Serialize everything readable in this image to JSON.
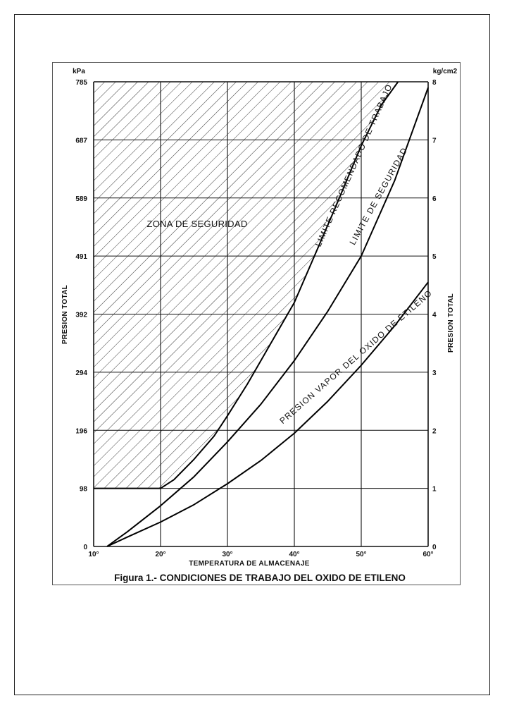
{
  "chart_data": {
    "type": "line",
    "caption": "Figura 1.- CONDICIONES DE TRABAJO DEL OXIDO DE ETILENO",
    "xlabel": "TEMPERATURA DE ALMACENAJE",
    "ylabel_left": "PRESION TOTAL",
    "ylabel_right": "PRESION TOTAL",
    "left_unit": "kPa",
    "right_unit": "kg/cm2",
    "x_ticks": [
      "10°",
      "20°",
      "30°",
      "40°",
      "50°",
      "60°"
    ],
    "y_left_ticks": [
      "0",
      "98",
      "196",
      "294",
      "392",
      "491",
      "589",
      "687",
      "785"
    ],
    "y_right_ticks": [
      "0",
      "1",
      "2",
      "3",
      "4",
      "5",
      "6",
      "7",
      "8"
    ],
    "xlim": [
      10,
      60
    ],
    "ylim": [
      0,
      8
    ],
    "grid": true,
    "shaded_region_label": "ZONA DE SEGURIDAD",
    "series": [
      {
        "name": "LIMITE RECOMENDADO DE TRABAJO",
        "x": [
          10,
          20,
          22,
          25,
          28,
          30,
          33,
          36,
          40,
          43,
          46,
          50,
          53,
          55.5
        ],
        "y": [
          1,
          1,
          1.15,
          1.5,
          1.9,
          2.25,
          2.8,
          3.4,
          4.2,
          5.0,
          5.8,
          6.9,
          7.6,
          8.0
        ]
      },
      {
        "name": "LIMITE DE SEGURIDAD",
        "x": [
          12,
          15,
          20,
          25,
          30,
          35,
          40,
          45,
          50,
          55,
          60
        ],
        "y": [
          0,
          0.25,
          0.7,
          1.2,
          1.8,
          2.45,
          3.2,
          4.05,
          5.0,
          6.3,
          7.9
        ]
      },
      {
        "name": "PRESION VAPOR DEL OXIDO DE ETILENO",
        "x": [
          12,
          15,
          20,
          25,
          30,
          35,
          40,
          45,
          50,
          55,
          60
        ],
        "y": [
          0,
          0.16,
          0.42,
          0.72,
          1.08,
          1.48,
          1.95,
          2.5,
          3.12,
          3.8,
          4.55
        ]
      }
    ]
  }
}
